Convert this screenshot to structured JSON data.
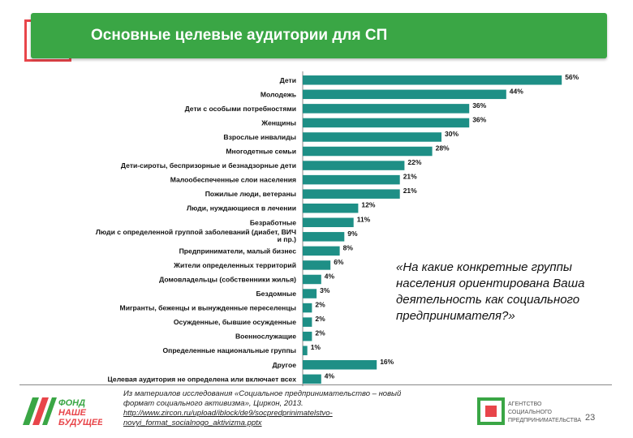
{
  "header": {
    "title": "Основные целевые аудитории для СП"
  },
  "chart_data": {
    "type": "bar",
    "orientation": "horizontal",
    "categories": [
      "Дети",
      "Молодежь",
      "Дети с особыми потребностями",
      "Женщины",
      "Взрослые инвалиды",
      "Многодетные семьи",
      "Дети-сироты, беспризорные и безнадзорные дети",
      "Малообеспеченные слои населения",
      "Пожилые люди, ветераны",
      "Люди, нуждающиеся в лечении",
      "Безработные",
      "Люди с определенной группой заболеваний (диабет, ВИЧ и пр.)",
      "Предприниматели, малый бизнес",
      "Жители определенных территорий",
      "Домовладельцы (собственники жилья)",
      "Бездомные",
      "Мигранты, беженцы и вынужденные переселенцы",
      "Осужденные, бывшие осужденные",
      "Военнослужащие",
      "Определенные национальные группы",
      "Другое",
      "Целевая аудитория не определена или включает всех"
    ],
    "values": [
      56,
      44,
      36,
      36,
      30,
      28,
      22,
      21,
      21,
      12,
      11,
      9,
      8,
      6,
      4,
      3,
      2,
      2,
      2,
      1,
      16,
      4
    ],
    "value_labels": [
      "56%",
      "44%",
      "36%",
      "36%",
      "30%",
      "28%",
      "22%",
      "21%",
      "21%",
      "12%",
      "11%",
      "9%",
      "8%",
      "6%",
      "4%",
      "3%",
      "2%",
      "2%",
      "2%",
      "1%",
      "16%",
      "4%"
    ],
    "xlim": [
      0,
      60
    ],
    "bar_color": "#1e8f86",
    "grid": false
  },
  "quote": "«На какие конкретные группы населения ориентирована Ваша деятельность как социального предпринимателя?»",
  "source": {
    "text": "Из материалов исследования «Социальное предпринимательство – новый формат социального активизма», Циркон, 2013.",
    "url": "http://www.zircon.ru/upload/iblock/de9/socpredprinimatelstvo-novyi_format_socialnogo_aktivizma.pptx"
  },
  "logo_left": {
    "line1": "ФОНД",
    "line2": "НАШЕ",
    "line3": "БУДУЩЕЕ"
  },
  "logo_right": {
    "line1": "АГЕНТСТВО",
    "line2": "СОЦИАЛЬНОГО",
    "line3": "ПРЕДПРИНИМАТЕЛЬСТВА"
  },
  "page_number": "23",
  "colors": {
    "header": "#3aa645",
    "accent_red": "#e8454a",
    "bar": "#1e8f86"
  }
}
